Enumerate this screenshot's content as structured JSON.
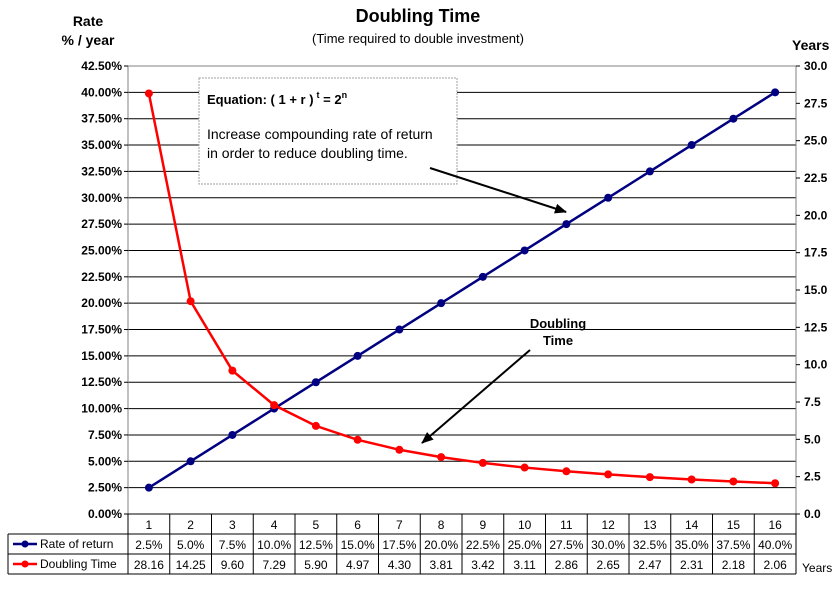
{
  "chart_data": {
    "type": "line",
    "title": "Doubling Time",
    "subtitle": "(Time required to double investment)",
    "y_left_label_line1": "Rate",
    "y_left_label_line2": "% / year",
    "y_right_label": "Years",
    "table_unit_label": "Years",
    "categories": [
      1,
      2,
      3,
      4,
      5,
      6,
      7,
      8,
      9,
      10,
      11,
      12,
      13,
      14,
      15,
      16
    ],
    "y_left_ticks": [
      "0.00%",
      "2.50%",
      "5.00%",
      "7.50%",
      "10.00%",
      "12.50%",
      "15.00%",
      "17.50%",
      "20.00%",
      "22.50%",
      "25.00%",
      "27.50%",
      "30.00%",
      "32.50%",
      "35.00%",
      "37.50%",
      "40.00%",
      "42.50%"
    ],
    "y_right_ticks": [
      "0.0",
      "2.5",
      "5.0",
      "7.5",
      "10.0",
      "12.5",
      "15.0",
      "17.5",
      "20.0",
      "22.5",
      "25.0",
      "27.5",
      "30.0"
    ],
    "ylim_left": [
      0,
      42.5
    ],
    "ylim_right": [
      0,
      30
    ],
    "grid": true,
    "legend": "data-table",
    "series": [
      {
        "name": "Rate of return",
        "axis": "left",
        "color": "#000080",
        "values": [
          2.5,
          5.0,
          7.5,
          10.0,
          12.5,
          15.0,
          17.5,
          20.0,
          22.5,
          25.0,
          27.5,
          30.0,
          32.5,
          35.0,
          37.5,
          40.0
        ],
        "labels": [
          "2.5%",
          "5.0%",
          "7.5%",
          "10.0%",
          "12.5%",
          "15.0%",
          "17.5%",
          "20.0%",
          "22.5%",
          "25.0%",
          "27.5%",
          "30.0%",
          "32.5%",
          "35.0%",
          "37.5%",
          "40.0%"
        ]
      },
      {
        "name": "Doubling Time",
        "axis": "right",
        "color": "#ff0000",
        "values": [
          28.16,
          14.25,
          9.6,
          7.29,
          5.9,
          4.97,
          4.3,
          3.81,
          3.42,
          3.11,
          2.86,
          2.65,
          2.47,
          2.31,
          2.18,
          2.06
        ],
        "labels": [
          "28.16",
          "14.25",
          "9.60",
          "7.29",
          "5.90",
          "4.97",
          "4.30",
          "3.81",
          "3.42",
          "3.11",
          "2.86",
          "2.65",
          "2.47",
          "2.31",
          "2.18",
          "2.06"
        ]
      }
    ],
    "annotations": {
      "equation_prefix": "Equation:  ( 1 + r )",
      "equation_t": "t",
      "equation_mid": " = 2",
      "equation_n": "n",
      "note_line1": "Increase compounding rate of return",
      "note_line2": "in order to reduce doubling time.",
      "doubling_line1": "Doubling",
      "doubling_line2": "Time"
    }
  }
}
